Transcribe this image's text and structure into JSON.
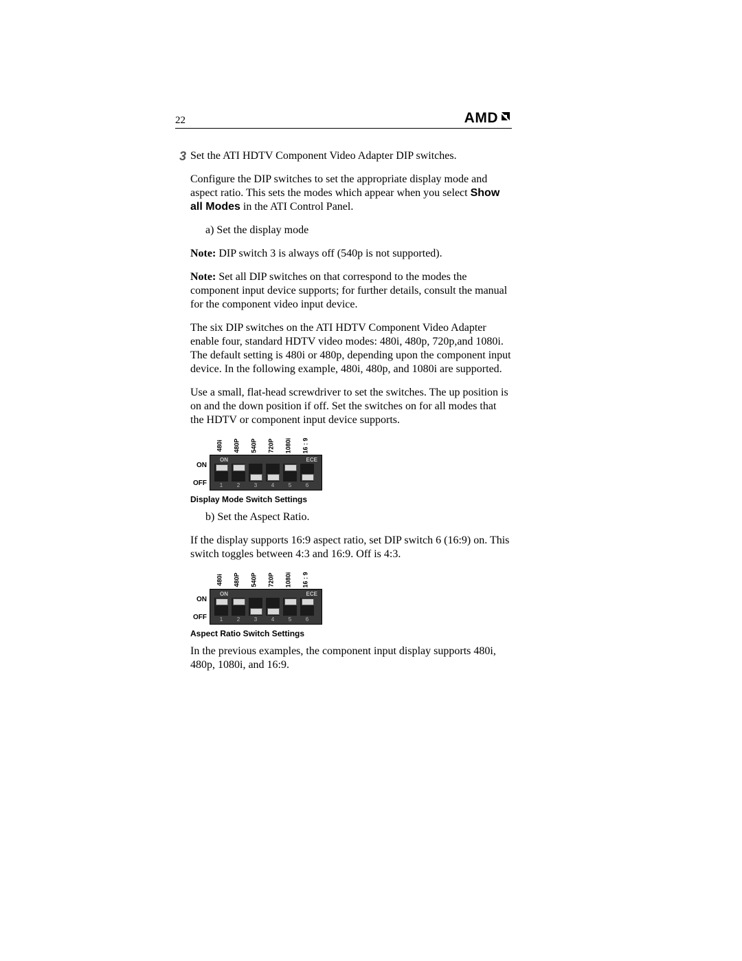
{
  "header": {
    "page_number": "22",
    "logo_text": "AMD"
  },
  "step": {
    "number": "3",
    "title": "Set the ATI HDTV Component Video Adapter DIP switches.",
    "para1_a": "Configure the DIP switches to set the appropriate display mode and aspect ratio. This sets the modes which appear when you select ",
    "para1_bold": "Show all Modes",
    "para1_b": " in the ATI Control Panel.",
    "sub_a": "a) Set the display mode",
    "note1_label": "Note:",
    "note1_text": " DIP switch 3 is always off (540p is not supported).",
    "note2_label": "Note:",
    "note2_text": " Set all DIP switches on that correspond to the modes the component input device supports; for further details, consult the manual for the component video input device.",
    "para2": "The six DIP switches on the ATI HDTV Component Video Adapter enable four, standard HDTV video modes: 480i, 480p, 720p,and 1080i. The default setting is 480i or 480p, depending upon the component input device. In the following example, 480i, 480p, and 1080i are supported.",
    "para3": "Use a small, flat-head screwdriver to set the switches. The up position is on and the down position if off. Set the switches on for all modes that the HDTV or component input device supports.",
    "caption1": "Display Mode Switch Settings",
    "sub_b": "b) Set the Aspect Ratio.",
    "para4": "If the display supports 16:9 aspect ratio, set DIP switch 6 (16:9) on. This switch toggles between 4:3 and 16:9. Off is 4:3.",
    "caption2": "Aspect Ratio Switch Settings",
    "para5": "In the previous examples, the component input display supports 480i, 480p, 1080i, and 16:9."
  },
  "dip": {
    "side_on": "ON",
    "side_off": "OFF",
    "body_on": "ON",
    "body_ece": "ECE",
    "top_labels": [
      "480i",
      "480P",
      "540P",
      "720P",
      "1080i",
      "16 : 9"
    ],
    "numbers": [
      "1",
      "2",
      "3",
      "4",
      "5",
      "6"
    ],
    "diagram1_positions": [
      "up",
      "up",
      "down",
      "down",
      "up",
      "down"
    ],
    "diagram2_positions": [
      "up",
      "up",
      "down",
      "down",
      "up",
      "up"
    ]
  },
  "styling": {
    "page_bg": "#ffffff",
    "text_color": "#000000",
    "step_num_color": "#555555",
    "dip_body_bg": "#3a3a3a",
    "dip_slot_bg": "#1a1a1a",
    "dip_toggle_bg": "#d8d8d8",
    "dip_label_color": "#cccccc",
    "body_fontsize_pt": 12,
    "caption_fontsize_pt": 9,
    "logo_fontsize_pt": 16
  }
}
